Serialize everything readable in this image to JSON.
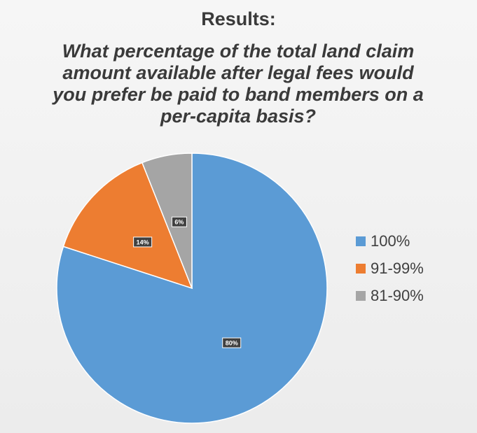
{
  "chart_data": {
    "type": "pie",
    "title": "Results:",
    "subtitle": "What percentage of the total land claim amount available after legal fees would you prefer be paid to band members on a per-capita basis?",
    "categories": [
      "100%",
      "91-99%",
      "81-90%"
    ],
    "values": [
      80,
      14,
      6
    ],
    "value_labels": [
      "80%",
      "14%",
      "6%"
    ],
    "colors": [
      "#5b9bd5",
      "#ed7d31",
      "#a5a5a5"
    ],
    "legend": "right"
  }
}
